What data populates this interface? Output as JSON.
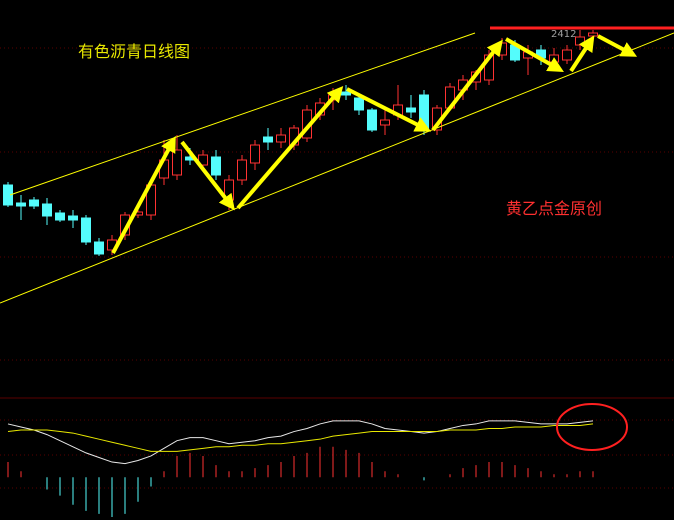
{
  "chart_data": [
    {
      "type": "candlestick",
      "title": "有色沥青日线图",
      "annotations": [
        "黄乙点金原创",
        "2412"
      ],
      "up_color": "#ff3232",
      "down_color": "#54fcfc",
      "ylim": [
        1644,
        2440
      ],
      "open": [
        2070,
        2034,
        2040,
        2032,
        2014,
        2008,
        2004,
        1956,
        1940,
        1970,
        2010,
        2010,
        2084,
        2090,
        2126,
        2110,
        2126,
        2040,
        2080,
        2114,
        2166,
        2156,
        2150,
        2164,
        2210,
        2240,
        2256,
        2244,
        2220,
        2190,
        2210,
        2224,
        2250,
        2180,
        2224,
        2260,
        2276,
        2280,
        2330,
        2350,
        2324,
        2340,
        2316,
        2320,
        2350,
        2368
      ],
      "high": [
        2076,
        2050,
        2046,
        2044,
        2020,
        2020,
        2010,
        1964,
        1970,
        2016,
        2024,
        2080,
        2160,
        2170,
        2144,
        2140,
        2140,
        2090,
        2130,
        2160,
        2184,
        2184,
        2190,
        2230,
        2244,
        2264,
        2270,
        2250,
        2224,
        2220,
        2270,
        2250,
        2260,
        2230,
        2274,
        2290,
        2300,
        2340,
        2364,
        2360,
        2350,
        2350,
        2344,
        2350,
        2380,
        2380
      ],
      "low": [
        2026,
        2000,
        2022,
        1990,
        1996,
        1984,
        1950,
        1928,
        1930,
        1960,
        2004,
        2000,
        2070,
        2080,
        2110,
        2100,
        2080,
        2020,
        2070,
        2100,
        2140,
        2144,
        2140,
        2156,
        2200,
        2220,
        2240,
        2210,
        2176,
        2170,
        2200,
        2204,
        2170,
        2170,
        2220,
        2240,
        2260,
        2270,
        2320,
        2316,
        2290,
        2310,
        2304,
        2312,
        2340,
        2360
      ],
      "close": [
        2030,
        2028,
        2028,
        2008,
        2000,
        2000,
        1956,
        1932,
        1960,
        2010,
        2016,
        2070,
        2120,
        2140,
        2120,
        2130,
        2090,
        2080,
        2120,
        2150,
        2156,
        2170,
        2184,
        2220,
        2234,
        2250,
        2250,
        2220,
        2180,
        2200,
        2230,
        2216,
        2180,
        2224,
        2266,
        2280,
        2296,
        2330,
        2354,
        2320,
        2336,
        2324,
        2330,
        2340,
        2366,
        2374
      ]
    },
    {
      "type": "macd",
      "ylim": [
        -28,
        52
      ],
      "up_color": "#ff3232",
      "down_color": "#54fcfc",
      "lines": [
        {
          "color": "#e8e8e8",
          "values": [
            35,
            33,
            31,
            28,
            24,
            20,
            16,
            13,
            10,
            9,
            11,
            14,
            19,
            24,
            26,
            26,
            24,
            22,
            23,
            24,
            26,
            27,
            30,
            32,
            35,
            37,
            37,
            37,
            35,
            32,
            31,
            30,
            29,
            30,
            32,
            34,
            35,
            37,
            37,
            37,
            36,
            35,
            35,
            35,
            36,
            37
          ]
        },
        {
          "color": "#e8e800",
          "values": [
            30,
            31,
            31,
            31,
            30,
            29,
            27,
            25,
            23,
            21,
            19,
            17,
            17,
            17,
            18,
            19,
            20,
            20,
            21,
            21,
            22,
            22,
            23,
            24,
            25,
            27,
            28,
            29,
            30,
            30,
            30,
            30,
            30,
            30,
            31,
            31,
            31,
            32,
            32,
            33,
            33,
            33,
            34,
            34,
            34,
            35
          ]
        }
      ],
      "bars": [
        10,
        4,
        0,
        -8,
        -12,
        -18,
        -22,
        -24,
        -26,
        -24,
        -16,
        -6,
        4,
        14,
        16,
        14,
        8,
        4,
        4,
        6,
        8,
        10,
        14,
        16,
        20,
        20,
        18,
        16,
        10,
        4,
        2,
        0,
        -2,
        0,
        2,
        6,
        8,
        10,
        10,
        8,
        6,
        4,
        2,
        2,
        4,
        4
      ]
    }
  ]
}
